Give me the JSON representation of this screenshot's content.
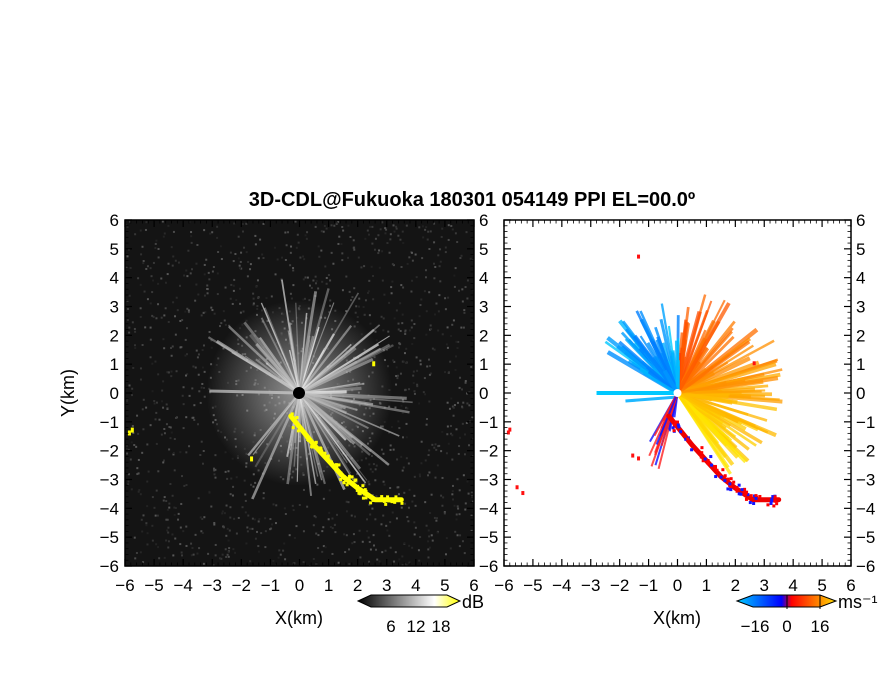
{
  "chart_data": [
    {
      "type": "heatmap",
      "title": "3D-CDL@Fukuoka 180301 054149 PPI EL=00.0º",
      "xlabel": "X(km)",
      "ylabel": "Y(km)",
      "xlim": [
        -6,
        6
      ],
      "ylim": [
        -6,
        6
      ],
      "xticks": [
        "−6",
        "−5",
        "−4",
        "−3",
        "−2",
        "−1",
        "0",
        "1",
        "2",
        "3",
        "4",
        "5",
        "6"
      ],
      "yticks": [
        "6",
        "5",
        "4",
        "3",
        "2",
        "1",
        "0",
        "−1",
        "−2",
        "−3",
        "−4",
        "−5",
        "−6"
      ],
      "colorbar": {
        "unit": "dB",
        "ticks": [
          "6",
          "12",
          "18"
        ],
        "range": [
          0,
          24
        ],
        "colors": [
          "#000000",
          "#ffffff",
          "#ffff00"
        ]
      },
      "features": [
        {
          "name": "bright-returns",
          "value_range": [
            6,
            18
          ],
          "x_range": [
            -3.5,
            3.5
          ],
          "y_range": [
            -2.5,
            3.5
          ]
        },
        {
          "name": "saturated-echo",
          "value": 24,
          "points": [
            [
              -0.3,
              -0.8
            ],
            [
              0.5,
              -1.8
            ],
            [
              1.5,
              -2.9
            ],
            [
              2.0,
              -3.3
            ],
            [
              2.6,
              -3.7
            ],
            [
              3.5,
              -3.7
            ]
          ]
        }
      ]
    },
    {
      "type": "heatmap",
      "xlabel": "X(km)",
      "xlim": [
        -6,
        6
      ],
      "ylim": [
        -6,
        6
      ],
      "xticks": [
        "−6",
        "−5",
        "−4",
        "−3",
        "−2",
        "−1",
        "0",
        "1",
        "2",
        "3",
        "4",
        "5",
        "6"
      ],
      "yticks": [
        "6",
        "5",
        "4",
        "3",
        "2",
        "1",
        "0",
        "−1",
        "−2",
        "−3",
        "−4",
        "−5",
        "−6"
      ],
      "colorbar": {
        "unit": "ms⁻¹",
        "ticks": [
          "−16",
          "0",
          "16"
        ],
        "range": [
          -20,
          20
        ],
        "colors": [
          "#00ccff",
          "#0000ff",
          "#ff0000",
          "#ffdd00"
        ]
      },
      "features": [
        {
          "name": "approaching-sector",
          "value_range": [
            -16,
            0
          ],
          "x_range": [
            -3.0,
            0
          ],
          "y_range": [
            -1.5,
            3.5
          ]
        },
        {
          "name": "receding-sector",
          "value_range": [
            0,
            16
          ],
          "x_range": [
            0,
            3.5
          ],
          "y_range": [
            -2.5,
            3.5
          ]
        }
      ]
    }
  ]
}
